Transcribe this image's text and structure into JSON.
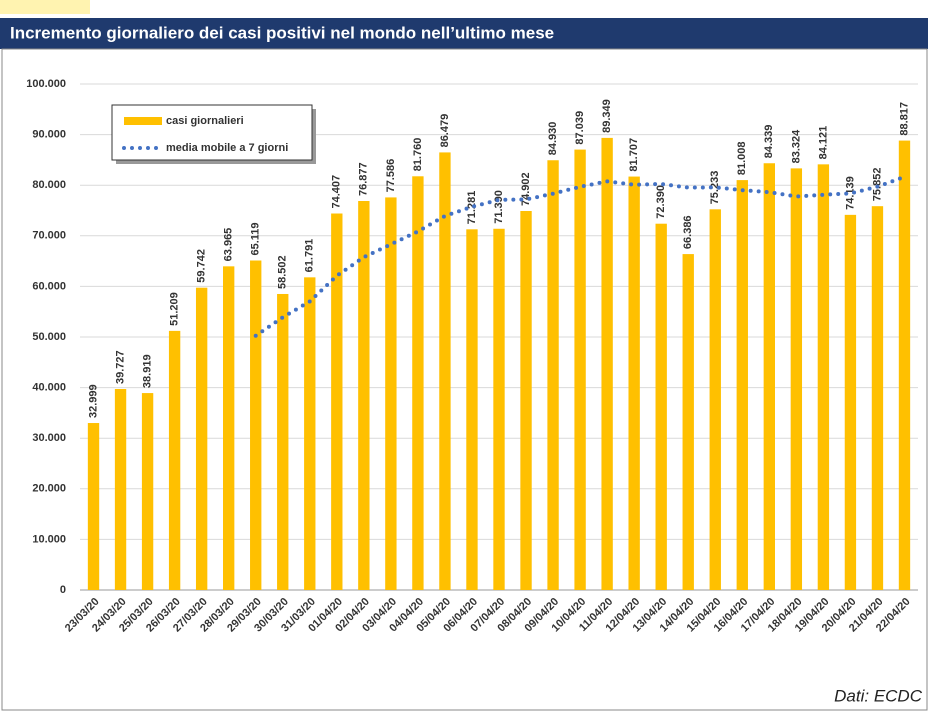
{
  "chart_data": {
    "type": "bar",
    "title": "Incremento giornaliero dei casi positivi nel mondo nell’ultimo mese",
    "source": "Dati: ECDC",
    "categories": [
      "23/03/20",
      "24/03/20",
      "25/03/20",
      "26/03/20",
      "27/03/20",
      "28/03/20",
      "29/03/20",
      "30/03/20",
      "31/03/20",
      "01/04/20",
      "02/04/20",
      "03/04/20",
      "04/04/20",
      "05/04/20",
      "06/04/20",
      "07/04/20",
      "08/04/20",
      "09/04/20",
      "10/04/20",
      "11/04/20",
      "12/04/20",
      "13/04/20",
      "14/04/20",
      "15/04/20",
      "16/04/20",
      "17/04/20",
      "18/04/20",
      "19/04/20",
      "20/04/20",
      "21/04/20",
      "22/04/20"
    ],
    "series": [
      {
        "name": "casi giornalieri",
        "type": "bar",
        "color": "#ffc000",
        "values": [
          32999,
          39727,
          38919,
          51209,
          59742,
          63965,
          65119,
          58502,
          61791,
          74407,
          76877,
          77586,
          81760,
          86479,
          71281,
          71390,
          74902,
          84930,
          87039,
          89349,
          81707,
          72390,
          66386,
          75233,
          81008,
          84339,
          83324,
          84121,
          74139,
          75852,
          88817
        ],
        "value_labels": [
          "32.999",
          "39.727",
          "38.919",
          "51.209",
          "59.742",
          "63.965",
          "65.119",
          "58.502",
          "61.791",
          "74.407",
          "76.877",
          "77.586",
          "81.760",
          "86.479",
          "71.281",
          "71.390",
          "74.902",
          "84.930",
          "87.039",
          "89.349",
          "81.707",
          "72.390",
          "66.386",
          "75.233",
          "81.008",
          "84.339",
          "83.324",
          "84.121",
          "74.139",
          "75.852",
          "88.817"
        ]
      },
      {
        "name": "media mobile a 7 giorni",
        "type": "line",
        "color": "#4472c4",
        "values": [
          null,
          null,
          null,
          null,
          null,
          null,
          50240,
          53883,
          57035,
          62105,
          65772,
          68321,
          70863,
          73915,
          75740,
          77111,
          77182,
          78333,
          79683,
          80767,
          80085,
          80244,
          79529,
          79576,
          79016,
          78630,
          77770,
          78114,
          78364,
          79717,
          81657
        ]
      }
    ],
    "ylim": [
      0,
      100000
    ],
    "yticks": [
      0,
      {
        "value": 10000,
        "label": "10.000"
      },
      {
        "value": 20000,
        "label": "20.000"
      },
      {
        "value": 30000,
        "label": "30.000"
      },
      {
        "value": 40000,
        "label": "40.000"
      },
      {
        "value": 50000,
        "label": "50.000"
      },
      {
        "value": 60000,
        "label": "60.000"
      },
      {
        "value": 70000,
        "label": "70.000"
      },
      {
        "value": 80000,
        "label": "80.000"
      },
      {
        "value": 90000,
        "label": "90.000"
      },
      {
        "value": 100000,
        "label": "100.000"
      }
    ],
    "grid": true
  }
}
